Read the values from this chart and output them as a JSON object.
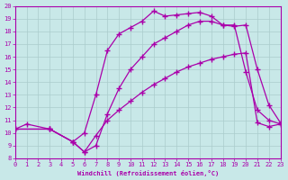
{
  "xlabel": "Windchill (Refroidissement éolien,°C)",
  "bg_color": "#c8e8e8",
  "line_color": "#aa00aa",
  "grid_color": "#aacccc",
  "xlim": [
    0,
    23
  ],
  "ylim": [
    8,
    20
  ],
  "xticks": [
    0,
    1,
    2,
    3,
    4,
    5,
    6,
    7,
    8,
    9,
    10,
    11,
    12,
    13,
    14,
    15,
    16,
    17,
    18,
    19,
    20,
    21,
    22,
    23
  ],
  "yticks": [
    8,
    9,
    10,
    11,
    12,
    13,
    14,
    15,
    16,
    17,
    18,
    19,
    20
  ],
  "line1_x": [
    0,
    1,
    3,
    5,
    6,
    7,
    8,
    9,
    10,
    11,
    12,
    13,
    14,
    15,
    16,
    17,
    18,
    19,
    20,
    21,
    22,
    23
  ],
  "line1_y": [
    10.3,
    10.7,
    10.3,
    9.3,
    10.0,
    13.0,
    16.5,
    17.8,
    18.3,
    18.8,
    19.6,
    19.2,
    19.3,
    19.4,
    19.5,
    19.2,
    18.5,
    18.4,
    18.5,
    15.0,
    12.2,
    10.8
  ],
  "line2_x": [
    0,
    3,
    5,
    6,
    7,
    8,
    9,
    10,
    11,
    12,
    13,
    14,
    15,
    16,
    17,
    18,
    19,
    20,
    21,
    22,
    23
  ],
  "line2_y": [
    10.3,
    10.3,
    9.3,
    8.5,
    9.0,
    11.5,
    13.5,
    15.0,
    16.0,
    17.0,
    17.5,
    18.0,
    18.5,
    18.8,
    18.8,
    18.5,
    18.5,
    14.8,
    11.8,
    11.0,
    10.7
  ],
  "line3_x": [
    0,
    3,
    5,
    6,
    7,
    8,
    9,
    10,
    11,
    12,
    13,
    14,
    15,
    16,
    17,
    18,
    19,
    20,
    21,
    22,
    23
  ],
  "line3_y": [
    10.3,
    10.3,
    9.3,
    8.5,
    9.8,
    11.0,
    11.8,
    12.5,
    13.2,
    13.8,
    14.3,
    14.8,
    15.2,
    15.5,
    15.8,
    16.0,
    16.2,
    16.3,
    10.8,
    10.5,
    10.7
  ]
}
